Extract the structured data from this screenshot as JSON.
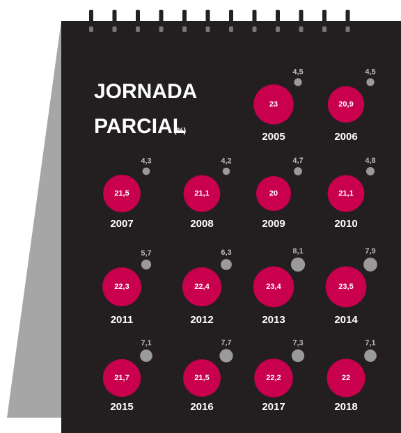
{
  "chart_data": {
    "type": "bubble",
    "title_lines": [
      "JORNADA",
      "PARCIAL"
    ],
    "unit": "(%)",
    "categories": [
      "2005",
      "2006",
      "2007",
      "2008",
      "2009",
      "2010",
      "2011",
      "2012",
      "2013",
      "2014",
      "2015",
      "2016",
      "2017",
      "2018"
    ],
    "series": [
      {
        "color": "#c8004e",
        "values": [
          23,
          20.9,
          21.5,
          21.1,
          20,
          21.1,
          22.3,
          22.4,
          23.4,
          23.5,
          21.7,
          21.5,
          22.2,
          22
        ],
        "value_labels": [
          "23",
          "20,9",
          "21,5",
          "21,1",
          "20",
          "21,1",
          "22,3",
          "22,4",
          "23,4",
          "23,5",
          "21,7",
          "21,5",
          "22,2",
          "22"
        ]
      },
      {
        "color": "#9a9a9a",
        "values": [
          4.5,
          4.5,
          4.3,
          4.2,
          4.7,
          4.8,
          5.7,
          6.3,
          8.1,
          7.9,
          7.1,
          7.7,
          7.3,
          7.1
        ],
        "value_labels": [
          "4,5",
          "4,5",
          "4,3",
          "4,2",
          "4,7",
          "4,8",
          "5,7",
          "6,3",
          "8,1",
          "7,9",
          "7,1",
          "7,7",
          "7,3",
          "7,1"
        ]
      }
    ]
  }
}
